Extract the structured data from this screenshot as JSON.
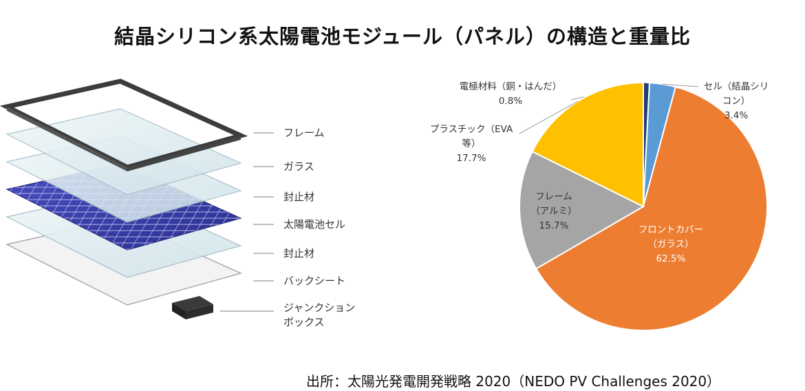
{
  "title": "結晶シリコン系太陽電池モジュール（パネル）の構造と重量比",
  "layers": [
    {
      "label": "フレーム",
      "icon": "frame-layer-icon"
    },
    {
      "label": "ガラス",
      "icon": "glass-layer-icon"
    },
    {
      "label": "封止材",
      "icon": "encapsulant-layer-icon"
    },
    {
      "label": "太陽電池セル",
      "icon": "solar-cell-layer-icon"
    },
    {
      "label": "封止材",
      "icon": "encapsulant-layer-icon"
    },
    {
      "label": "バックシート",
      "icon": "backsheet-layer-icon"
    },
    {
      "label_line1": "ジャンクション",
      "label_line2": "ボックス",
      "icon": "junction-box-icon"
    }
  ],
  "chart_data": {
    "type": "pie",
    "title": "",
    "start": "12 o'clock, clockwise",
    "series": [
      {
        "values": [
          {
            "label_lines": [
              "電極材料（銅・はんだ）",
              "0.8%"
            ],
            "value": 0.8,
            "color": "#1f3d7a"
          },
          {
            "label_lines": [
              "セル（結晶シリ",
              "コン）",
              "3.4%"
            ],
            "value": 3.4,
            "color": "#5b9bd5"
          },
          {
            "label_lines": [
              "フロントカバー",
              "（ガラス）",
              "62.5%"
            ],
            "value": 62.5,
            "color": "#ed7d31"
          },
          {
            "label_lines": [
              "フレーム",
              "（アルミ）",
              "15.7%"
            ],
            "value": 15.7,
            "color": "#a5a5a5"
          },
          {
            "label_lines": [
              "プラスチック（EVA",
              "等）",
              "17.7%"
            ],
            "value": 17.7,
            "color": "#ffc000"
          }
        ]
      }
    ]
  },
  "source": "出所：太陽光発電開発戦略 2020（NEDO PV Challenges 2020）"
}
